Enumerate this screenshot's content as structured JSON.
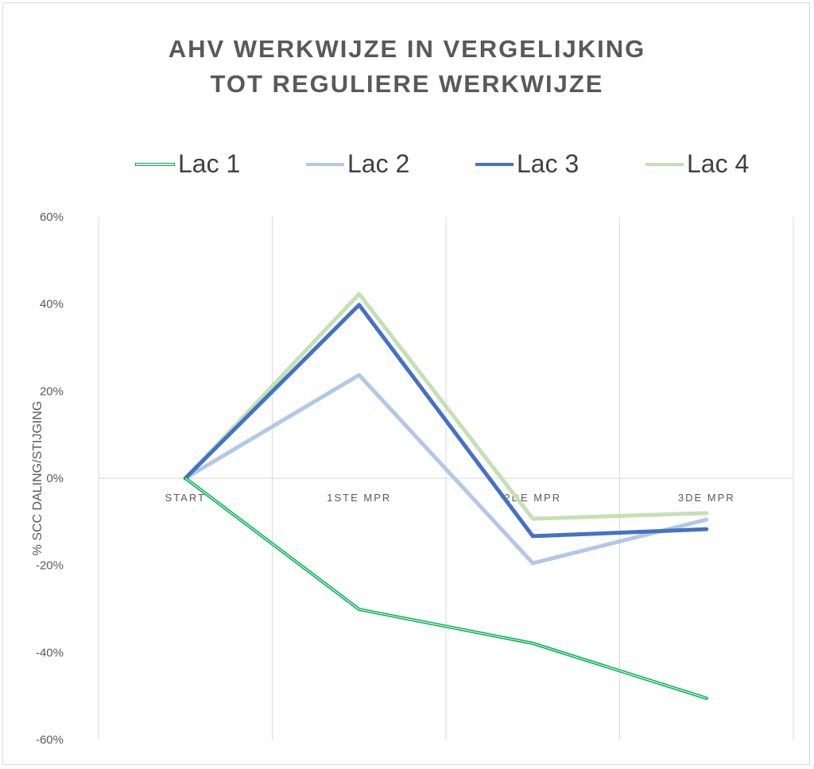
{
  "chart_data": {
    "type": "line",
    "title_lines": [
      "AHV WERKWIJZE IN VERGELIJKING",
      "TOT REGULIERE WERKWIJZE"
    ],
    "xlabel": "",
    "ylabel": "% SCC DALING/STIJGING",
    "categories": [
      "START",
      "1STE MPR",
      "2DE MPR",
      "3DE MPR"
    ],
    "ylim": [
      -60,
      60
    ],
    "yticks": [
      60,
      40,
      20,
      0,
      -20,
      -40,
      -60
    ],
    "ytick_labels": [
      "60%",
      "40%",
      "20%",
      "0%",
      "-20%",
      "-40%",
      "-60%"
    ],
    "grid": "vertical category gridlines",
    "legend": "top",
    "series": [
      {
        "name": "Lac 1",
        "color": "#00b050",
        "values": [
          0,
          -30.1,
          -37.9,
          -50.5
        ]
      },
      {
        "name": "Lac 2",
        "color": "#b4c7e7",
        "values": [
          0,
          23.7,
          -19.5,
          -9.5
        ]
      },
      {
        "name": "Lac 3",
        "color": "#4472c4",
        "values": [
          0,
          39.8,
          -13.3,
          -11.7
        ]
      },
      {
        "name": "Lac 4",
        "color": "#c5e0b4",
        "values": [
          0,
          42.3,
          -9.3,
          -8.0
        ]
      }
    ]
  }
}
